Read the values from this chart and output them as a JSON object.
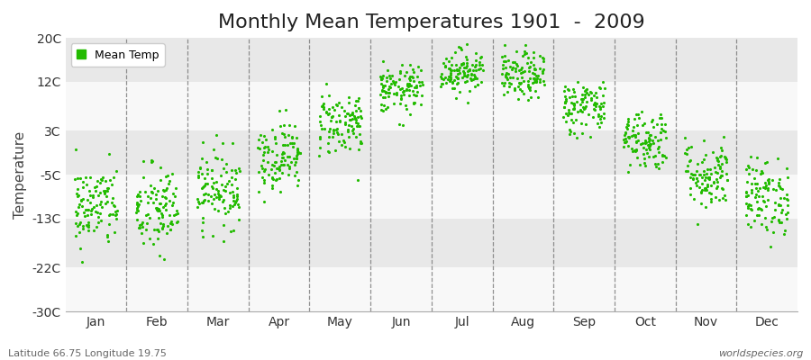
{
  "title": "Monthly Mean Temperatures 1901  -  2009",
  "ylabel": "Temperature",
  "subtitle_left": "Latitude 66.75 Longitude 19.75",
  "subtitle_right": "worldspecies.org",
  "legend_label": "Mean Temp",
  "dot_color": "#22bb00",
  "band_color_light": "#f8f8f8",
  "band_color_dark": "#e8e8e8",
  "ylim": [
    -30,
    20
  ],
  "ytick_values": [
    -30,
    -22,
    -13,
    -5,
    3,
    12,
    20
  ],
  "ytick_labels": [
    "-30C",
    "-22C",
    "-13C",
    "-5C",
    "3C",
    "12C",
    "20C"
  ],
  "months": [
    "Jan",
    "Feb",
    "Mar",
    "Apr",
    "May",
    "Jun",
    "Jul",
    "Aug",
    "Sep",
    "Oct",
    "Nov",
    "Dec"
  ],
  "monthly_means": [
    -10.8,
    -11.5,
    -7.5,
    -1.5,
    4.5,
    10.5,
    14.0,
    13.0,
    7.5,
    1.5,
    -5.0,
    -9.0
  ],
  "monthly_stds": [
    3.8,
    4.2,
    3.5,
    3.2,
    3.0,
    2.2,
    2.0,
    2.2,
    2.5,
    2.8,
    3.2,
    3.5
  ],
  "n_years": 109,
  "seed": 42,
  "dot_size": 5,
  "title_fontsize": 16,
  "axis_fontsize": 10,
  "ylabel_fontsize": 11
}
